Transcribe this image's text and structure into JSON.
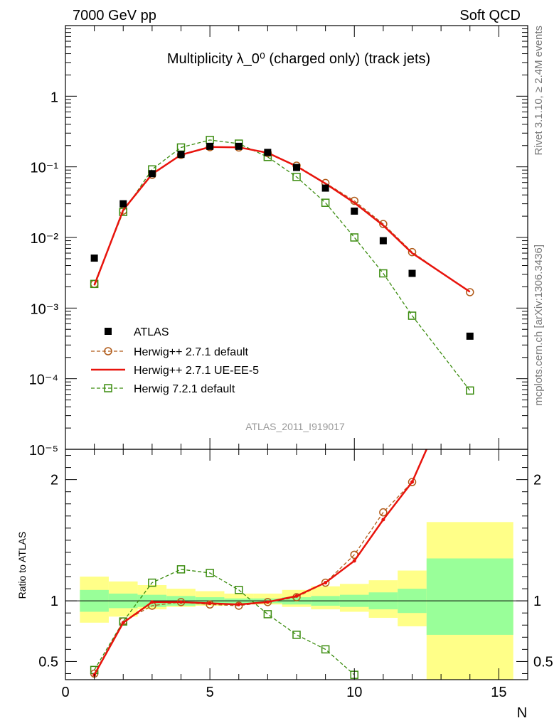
{
  "header": {
    "left": "7000 GeV pp",
    "right": "Soft QCD"
  },
  "side_text": {
    "rivet": "Rivet 3.1.10, ≥ 2.4M events",
    "mcplots": "mcplots.cern.ch [arXiv:1306.3436]"
  },
  "watermark": "ATLAS_2011_I919017",
  "chart_data": [
    {
      "type": "scatter",
      "panel": "main",
      "title": "Multiplicity λ_0⁰ (charged only) (track jets)",
      "yscale": "log",
      "ylim": [
        1e-05,
        10
      ],
      "xlim": [
        0,
        16
      ],
      "y_tick_labels": [
        "10⁻⁵",
        "10⁻⁴",
        "10⁻³",
        "10⁻²",
        "10⁻¹",
        "1"
      ],
      "legend_position": "bottom-left",
      "series": [
        {
          "name": "ATLAS",
          "style": "marker-square-filled",
          "color": "#000000",
          "x": [
            1,
            2,
            3,
            4,
            5,
            6,
            7,
            8,
            9,
            10,
            11,
            12,
            14
          ],
          "y": [
            0.0051,
            0.03,
            0.08,
            0.15,
            0.195,
            0.195,
            0.16,
            0.098,
            0.05,
            0.0236,
            0.009,
            0.0031,
            0.0004
          ]
        },
        {
          "name": "Herwig++ 2.7.1 default",
          "style": "dashed-open-circle",
          "color": "#b05a18",
          "x": [
            1,
            2,
            3,
            4,
            5,
            6,
            7,
            8,
            9,
            10,
            11,
            12,
            14
          ],
          "y": [
            0.0022,
            0.024,
            0.077,
            0.148,
            0.19,
            0.188,
            0.157,
            0.104,
            0.059,
            0.033,
            0.0155,
            0.0062,
            0.00168
          ]
        },
        {
          "name": "Herwig++ 2.7.1 UE-EE-5",
          "style": "solid-line",
          "color": "#e8130c",
          "x": [
            1,
            2,
            3,
            4,
            5,
            6,
            7,
            8,
            9,
            10,
            11,
            12,
            14
          ],
          "y": [
            0.0021,
            0.0245,
            0.079,
            0.148,
            0.191,
            0.189,
            0.158,
            0.102,
            0.058,
            0.031,
            0.0148,
            0.006,
            0.0017
          ]
        },
        {
          "name": "Herwig 7.2.1 default",
          "style": "dashed-open-square",
          "color": "#3b8c0f",
          "x": [
            1,
            2,
            3,
            4,
            5,
            6,
            7,
            8,
            9,
            10,
            11,
            12,
            14
          ],
          "y": [
            0.0022,
            0.023,
            0.092,
            0.188,
            0.24,
            0.213,
            0.138,
            0.072,
            0.031,
            0.01,
            0.0031,
            0.00078,
            6.8e-05
          ]
        }
      ]
    },
    {
      "type": "line",
      "panel": "ratio",
      "ylabel": "Ratio to ATLAS",
      "xlabel": "N",
      "ylim": [
        0.35,
        2.25
      ],
      "xlim": [
        0,
        16
      ],
      "reference_line": 1,
      "x_tick_labels": [
        "0",
        "5",
        "10",
        "15"
      ],
      "y_tick_labels": [
        "0.5",
        "1",
        "2"
      ],
      "uncertainty_bands": {
        "bin_edges": [
          0.5,
          1.5,
          2.5,
          3.5,
          4.5,
          5.5,
          6.5,
          7.5,
          8.5,
          9.5,
          10.5,
          11.5,
          12.5,
          15.5
        ],
        "inner": {
          "color": "#99ff99",
          "low": [
            0.91,
            0.94,
            0.95,
            0.96,
            0.97,
            0.98,
            0.98,
            0.97,
            0.96,
            0.95,
            0.93,
            0.9,
            0.72
          ],
          "high": [
            1.09,
            1.06,
            1.05,
            1.04,
            1.03,
            1.02,
            1.02,
            1.03,
            1.04,
            1.05,
            1.07,
            1.1,
            1.35
          ]
        },
        "outer": {
          "color": "#ffff88",
          "low": [
            0.82,
            0.87,
            0.93,
            0.95,
            0.96,
            0.97,
            0.97,
            0.95,
            0.93,
            0.91,
            0.86,
            0.79,
            0.22
          ],
          "high": [
            1.2,
            1.16,
            1.13,
            1.1,
            1.08,
            1.06,
            1.06,
            1.09,
            1.12,
            1.14,
            1.17,
            1.25,
            1.65
          ]
        }
      },
      "series": [
        {
          "name": "Herwig++ 2.7.1 default",
          "color": "#b05a18",
          "x": [
            1,
            2,
            3,
            4,
            5,
            6,
            7,
            8,
            9,
            10,
            11,
            12
          ],
          "y": [
            0.4,
            0.83,
            0.96,
            0.99,
            0.97,
            0.96,
            0.99,
            1.03,
            1.15,
            1.38,
            1.73,
            1.98
          ]
        },
        {
          "name": "Herwig++ 2.7.1 UE-EE-5",
          "color": "#e8130c",
          "x": [
            1,
            2,
            3,
            4,
            5,
            6,
            7,
            8,
            9,
            10,
            11,
            12,
            12.5
          ],
          "y": [
            0.39,
            0.82,
            0.99,
            0.99,
            0.98,
            0.97,
            0.99,
            1.04,
            1.15,
            1.33,
            1.67,
            1.98,
            2.25
          ]
        },
        {
          "name": "Herwig 7.2.1 default",
          "color": "#3b8c0f",
          "x": [
            1,
            2,
            3,
            4,
            5,
            6,
            7,
            8,
            9,
            10
          ],
          "y": [
            0.43,
            0.83,
            1.15,
            1.26,
            1.23,
            1.09,
            0.89,
            0.72,
            0.6,
            0.39
          ]
        }
      ]
    }
  ]
}
